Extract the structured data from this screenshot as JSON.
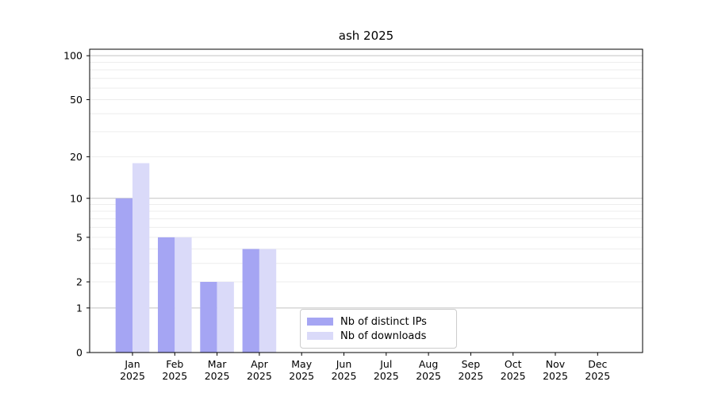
{
  "chart_data": {
    "type": "bar",
    "title": "ash 2025",
    "xlabel": "",
    "ylabel": "",
    "categories": [
      "Jan",
      "Feb",
      "Mar",
      "Apr",
      "May",
      "Jun",
      "Jul",
      "Aug",
      "Sep",
      "Oct",
      "Nov",
      "Dec"
    ],
    "category_year": "2025",
    "series": [
      {
        "name": "Nb of distinct IPs",
        "color": "#a5a5f3",
        "values": [
          10,
          5,
          2,
          4,
          0,
          0,
          0,
          0,
          0,
          0,
          0,
          0
        ]
      },
      {
        "name": "Nb of downloads",
        "color": "#dadaf9",
        "values": [
          18,
          5,
          2,
          4,
          0,
          0,
          0,
          0,
          0,
          0,
          0,
          0
        ]
      }
    ],
    "yscale": "log1p",
    "ylim": [
      0,
      112
    ],
    "yticks": [
      0,
      1,
      2,
      5,
      10,
      20,
      50,
      100
    ],
    "grid": {
      "major_values": [
        1,
        10,
        100
      ],
      "minor_values": [
        2,
        3,
        4,
        5,
        6,
        7,
        8,
        9,
        20,
        30,
        40,
        50,
        60,
        70,
        80,
        90
      ],
      "major_color": "#c3c3c3",
      "minor_color": "#ededed"
    },
    "legend": {
      "position": "lower center-right",
      "entries": [
        "Nb of distinct IPs",
        "Nb of downloads"
      ]
    },
    "axis_color": "#000000",
    "text_color": "#000000"
  }
}
